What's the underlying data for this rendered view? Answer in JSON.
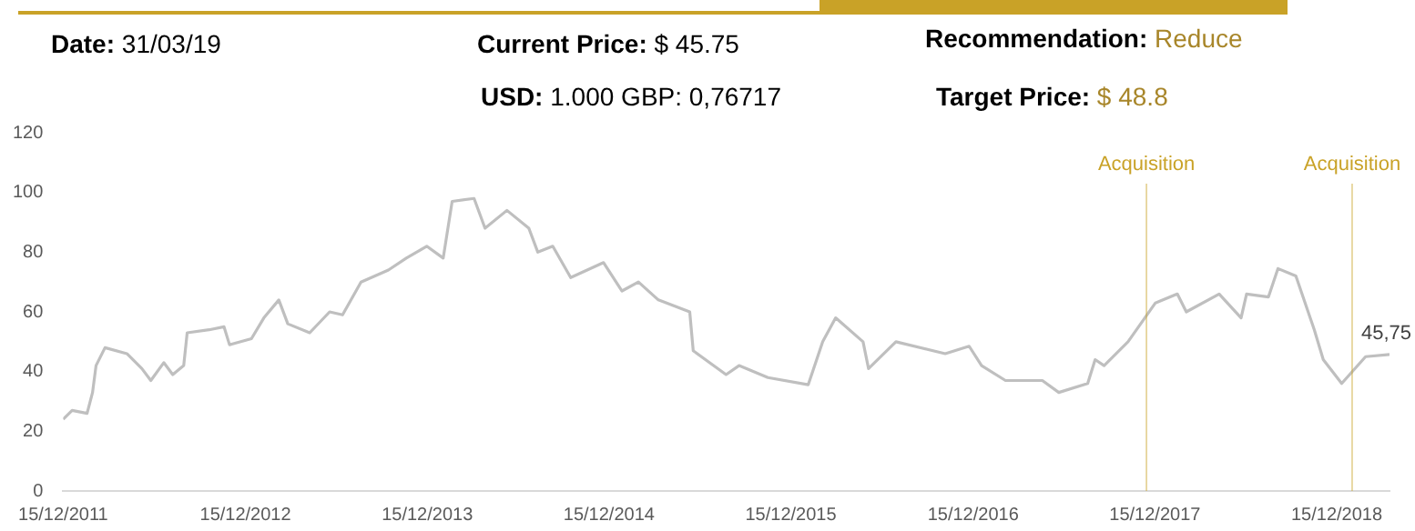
{
  "chart_data": {
    "type": "line",
    "annotations": [
      "Date: 31/03/19",
      "Current Price: $ 45.75",
      "Recommendation: Reduce",
      "USD: 1.000  GBP: 0,76717",
      "Target Price: $ 48.8"
    ],
    "x": [
      "2011-12-15",
      "2012-01-02",
      "2012-02-01",
      "2012-02-12",
      "2012-02-19",
      "2012-03-08",
      "2012-04-21",
      "2012-05-21",
      "2012-06-08",
      "2012-07-04",
      "2012-07-22",
      "2012-08-13",
      "2012-08-20",
      "2012-10-03",
      "2012-11-02",
      "2012-11-13",
      "2012-12-27",
      "2013-01-21",
      "2013-02-20",
      "2013-03-10",
      "2013-04-23",
      "2013-06-02",
      "2013-06-28",
      "2013-08-04",
      "2013-09-28",
      "2013-11-03",
      "2013-12-14",
      "2014-01-16",
      "2014-02-03",
      "2014-03-19",
      "2014-04-10",
      "2014-05-24",
      "2014-07-07",
      "2014-07-25",
      "2014-08-24",
      "2014-09-29",
      "2014-12-04",
      "2015-01-10",
      "2015-02-12",
      "2015-03-24",
      "2015-05-26",
      "2015-06-02",
      "2015-08-07",
      "2015-09-02",
      "2015-10-30",
      "2016-01-19",
      "2016-02-17",
      "2016-03-14",
      "2016-05-08",
      "2016-05-19",
      "2016-07-13",
      "2016-10-20",
      "2016-12-07",
      "2017-01-01",
      "2017-02-18",
      "2017-05-03",
      "2017-06-05",
      "2017-08-02",
      "2017-08-17",
      "2017-09-04",
      "2017-10-22",
      "2017-12-16",
      "2018-01-29",
      "2018-02-16",
      "2018-04-23",
      "2018-06-06",
      "2018-06-17",
      "2018-07-31",
      "2018-08-19",
      "2018-09-24",
      "2018-10-31",
      "2018-11-18",
      "2018-12-25",
      "2019-02-11",
      "2019-03-31"
    ],
    "series": [
      {
        "color": "#bfbfbf",
        "values": [
          24,
          27,
          26,
          33,
          42,
          48,
          46,
          41,
          37,
          43,
          39,
          42,
          53,
          54,
          55,
          49,
          51,
          58,
          64,
          56,
          53,
          60,
          59,
          70,
          74,
          78,
          82,
          78,
          97,
          98,
          88,
          94,
          88,
          80,
          82,
          71.5,
          76.5,
          67,
          70,
          64,
          60,
          47,
          39,
          42,
          38,
          35.6,
          50,
          58,
          50,
          41,
          50,
          46,
          48.5,
          42,
          37,
          37,
          33,
          36,
          44,
          42,
          50,
          63,
          66,
          60,
          66,
          58,
          66,
          65,
          74.5,
          72,
          54,
          44,
          36,
          45,
          45.75
        ],
        "value_labels": [
          null,
          null,
          null,
          null,
          null,
          null,
          null,
          null,
          null,
          null,
          null,
          null,
          null,
          null,
          null,
          null,
          null,
          null,
          null,
          null,
          null,
          null,
          null,
          null,
          null,
          null,
          null,
          null,
          null,
          null,
          null,
          null,
          null,
          null,
          null,
          null,
          null,
          null,
          null,
          null,
          null,
          null,
          null,
          null,
          null,
          null,
          null,
          null,
          null,
          null,
          null,
          null,
          null,
          null,
          null,
          null,
          null,
          null,
          null,
          null,
          null,
          null,
          null,
          null,
          null,
          null,
          null,
          null,
          null,
          null,
          null,
          null,
          null,
          null,
          "45,75"
        ]
      }
    ],
    "xlim": [
      "2011-12-15",
      "2019-03-31"
    ],
    "xticks": [
      {
        "value": "2011-12-15",
        "label": "15/12/2011"
      },
      {
        "value": "2012-12-15",
        "label": "15/12/2012"
      },
      {
        "value": "2013-12-15",
        "label": "15/12/2013"
      },
      {
        "value": "2014-12-15",
        "label": "15/12/2014"
      },
      {
        "value": "2015-12-15",
        "label": "15/12/2015"
      },
      {
        "value": "2016-12-15",
        "label": "15/12/2016"
      },
      {
        "value": "2017-12-15",
        "label": "15/12/2017"
      },
      {
        "value": "2018-12-15",
        "label": "15/12/2018"
      }
    ],
    "ylim": [
      0,
      120
    ],
    "yticks": [
      0,
      20,
      40,
      60,
      80,
      100,
      120
    ],
    "ref_lines": [
      {
        "axis": "x",
        "value": "2017-11-28",
        "label": "Acquisition",
        "color": "#c9a227"
      },
      {
        "axis": "x",
        "value": "2019-01-15",
        "label": "Acquisition",
        "color": "#c9a227"
      }
    ],
    "grid": false,
    "legend": false,
    "marker": "none",
    "line_style": "solid"
  }
}
